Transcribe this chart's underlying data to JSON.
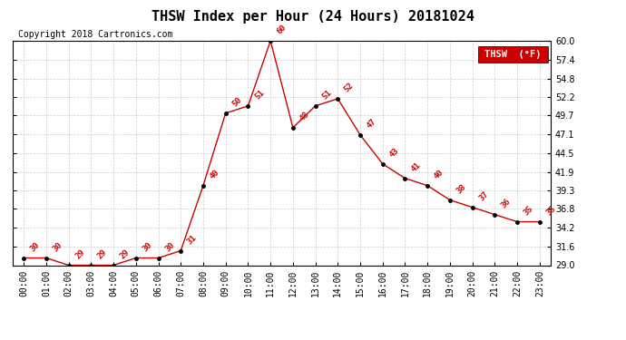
{
  "title": "THSW Index per Hour (24 Hours) 20181024",
  "copyright": "Copyright 2018 Cartronics.com",
  "legend_label": "THSW  (°F)",
  "hours": [
    0,
    1,
    2,
    3,
    4,
    5,
    6,
    7,
    8,
    9,
    10,
    11,
    12,
    13,
    14,
    15,
    16,
    17,
    18,
    19,
    20,
    21,
    22,
    23
  ],
  "x_labels": [
    "00:00",
    "01:00",
    "02:00",
    "03:00",
    "04:00",
    "05:00",
    "06:00",
    "07:00",
    "08:00",
    "09:00",
    "10:00",
    "11:00",
    "12:00",
    "13:00",
    "14:00",
    "15:00",
    "16:00",
    "17:00",
    "18:00",
    "19:00",
    "20:00",
    "21:00",
    "22:00",
    "23:00"
  ],
  "values": [
    30,
    30,
    29,
    29,
    29,
    30,
    30,
    31,
    40,
    50,
    51,
    60,
    48,
    51,
    52,
    47,
    43,
    41,
    40,
    38,
    37,
    36,
    35,
    35
  ],
  "ylim": [
    29.0,
    60.0
  ],
  "yticks": [
    29.0,
    31.6,
    34.2,
    36.8,
    39.3,
    41.9,
    44.5,
    47.1,
    49.7,
    52.2,
    54.8,
    57.4,
    60.0
  ],
  "line_color": "#cc0000",
  "marker_color": "#000000",
  "label_color": "#cc0000",
  "bg_color": "#ffffff",
  "grid_color": "#cccccc",
  "title_fontsize": 11,
  "copyright_fontsize": 7,
  "label_fontsize": 6.5,
  "tick_fontsize": 7,
  "legend_fontsize": 7.5
}
